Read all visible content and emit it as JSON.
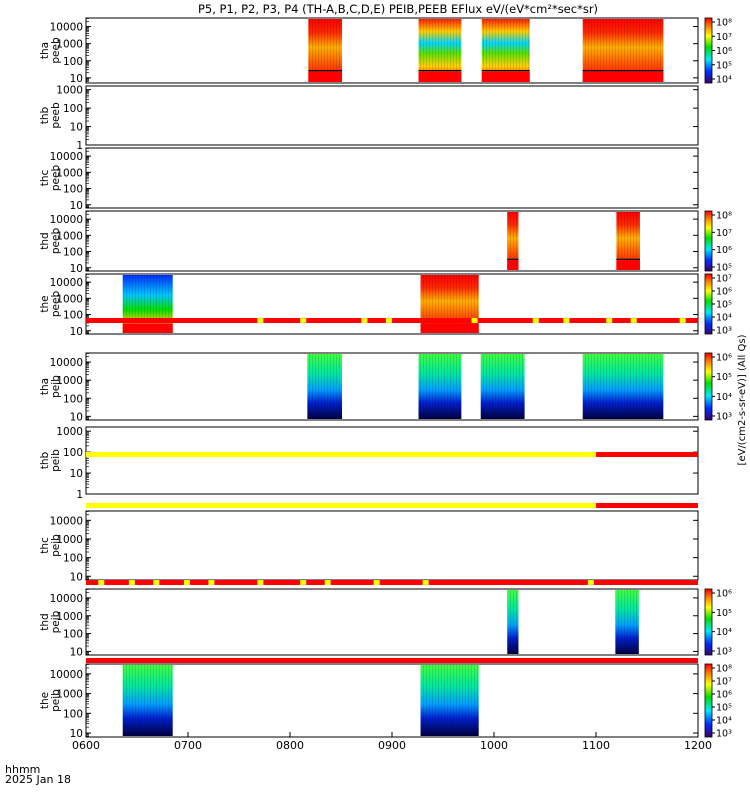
{
  "title": "P5, P1, P2, P3, P4 (TH-A,B,C,D,E) PEIB,PEEB EFlux eV/(eV*cm²*sec*sr)",
  "footer": {
    "xaxis_name": "hhmm",
    "date": "2025 Jan 18"
  },
  "colorbar_label": "[eV/(cm2-s-sr-eV)] (All Qs)",
  "colors": {
    "red": "#ff0000",
    "orange": "#ff8c00",
    "yellow": "#ffff00",
    "green": "#00e000",
    "cyan": "#00e8ff",
    "blue": "#0030ff",
    "navy": "#00007f",
    "status_red": "#ff0000",
    "status_yellow": "#ffff00"
  },
  "chart_data": {
    "type": "heatmap",
    "x_range": [
      "0600",
      "1200"
    ],
    "x_ticks": [
      "0600",
      "0700",
      "0800",
      "0900",
      "1000",
      "1100",
      "1200"
    ],
    "panels": [
      {
        "label1": "tha",
        "label2": "peeb",
        "y_ticks": [
          "10",
          "100",
          "1000",
          "10000"
        ],
        "y_log_range": [
          0.7,
          4.5
        ],
        "colorbar_ticks": [
          "10⁴",
          "10⁵",
          "10⁶",
          "10⁷",
          "10⁸"
        ],
        "segments": [
          {
            "start": "0818",
            "end": "0851",
            "style": "hot"
          },
          {
            "start": "0926",
            "end": "0968",
            "style": "mixed"
          },
          {
            "start": "0988",
            "end": "1035",
            "style": "mixed"
          },
          {
            "start": "1087",
            "end": "1166",
            "style": "hot"
          }
        ]
      },
      {
        "label1": "thb",
        "label2": "peeb",
        "y_ticks": [
          "1",
          "10",
          "100",
          "1000"
        ],
        "y_log_range": [
          0,
          3.2
        ],
        "colorbar_ticks": [],
        "segments": []
      },
      {
        "label1": "thc",
        "label2": "peeb",
        "y_ticks": [
          "10",
          "100",
          "1000",
          "10000"
        ],
        "y_log_range": [
          0.8,
          4.5
        ],
        "colorbar_ticks": [],
        "segments": []
      },
      {
        "label1": "thd",
        "label2": "peeb",
        "y_ticks": [
          "10",
          "100",
          "1000",
          "10000"
        ],
        "y_log_range": [
          0.8,
          4.5
        ],
        "colorbar_ticks": [
          "10⁵",
          "10⁶",
          "10⁷",
          "10⁸"
        ],
        "segments": [
          {
            "start": "1013",
            "end": "1024",
            "style": "hot"
          },
          {
            "start": "1120",
            "end": "1143",
            "style": "hot"
          }
        ]
      },
      {
        "label1": "the",
        "label2": "peeb",
        "y_ticks": [
          "10",
          "100",
          "1000",
          "10000"
        ],
        "y_log_range": [
          0.8,
          4.5
        ],
        "colorbar_ticks": [
          "10³",
          "10⁴",
          "10⁵",
          "10⁶",
          "10⁷"
        ],
        "segments": [
          {
            "start": "0636",
            "end": "0685",
            "style": "cool"
          },
          {
            "start": "0928",
            "end": "0985",
            "style": "hot"
          }
        ]
      },
      {
        "label1": "tha",
        "label2": "peib",
        "y_ticks": [
          "10",
          "100",
          "1000",
          "10000"
        ],
        "y_log_range": [
          0.8,
          4.5
        ],
        "colorbar_ticks": [
          "10³",
          "10⁴",
          "10⁵",
          "10⁶"
        ],
        "segments": [
          {
            "start": "0817",
            "end": "0851",
            "style": "ion"
          },
          {
            "start": "0926",
            "end": "0968",
            "style": "ion"
          },
          {
            "start": "0987",
            "end": "1030",
            "style": "ion"
          },
          {
            "start": "1087",
            "end": "1166",
            "style": "ion"
          }
        ]
      },
      {
        "label1": "thb",
        "label2": "peib",
        "y_ticks": [
          "1",
          "10",
          "100",
          "1000"
        ],
        "y_log_range": [
          0,
          3.2
        ],
        "colorbar_ticks": [],
        "segments": []
      },
      {
        "label1": "thc",
        "label2": "peib",
        "y_ticks": [
          "10",
          "100",
          "1000",
          "10000"
        ],
        "y_log_range": [
          0.8,
          4.5
        ],
        "colorbar_ticks": [],
        "segments": []
      },
      {
        "label1": "thd",
        "label2": "peib",
        "y_ticks": [
          "10",
          "100",
          "1000",
          "10000"
        ],
        "y_log_range": [
          0.8,
          4.5
        ],
        "colorbar_ticks": [
          "10³",
          "10⁴",
          "10⁵",
          "10⁶"
        ],
        "segments": [
          {
            "start": "1013",
            "end": "1024",
            "style": "ion"
          },
          {
            "start": "1119",
            "end": "1142",
            "style": "ion"
          }
        ]
      },
      {
        "label1": "the",
        "label2": "peib",
        "y_ticks": [
          "10",
          "100",
          "1000",
          "10000"
        ],
        "y_log_range": [
          0.8,
          4.5
        ],
        "colorbar_ticks": [
          "10³",
          "10⁴",
          "10⁵",
          "10⁶",
          "10⁷",
          "10⁸"
        ],
        "segments": [
          {
            "start": "0636",
            "end": "0685",
            "style": "ion"
          },
          {
            "start": "0928",
            "end": "0985",
            "style": "ion"
          }
        ]
      }
    ],
    "status_bars": [
      {
        "before_panel": 5,
        "pattern": "mostly-red"
      },
      {
        "before_panel": 6,
        "pattern": "yellow-then-red",
        "switch": "1100"
      },
      {
        "before_panel": 7,
        "pattern": "yellow-then-red",
        "switch": "1100"
      },
      {
        "before_panel": 8,
        "pattern": "mixed"
      },
      {
        "before_panel": 9,
        "pattern": "red"
      }
    ]
  }
}
